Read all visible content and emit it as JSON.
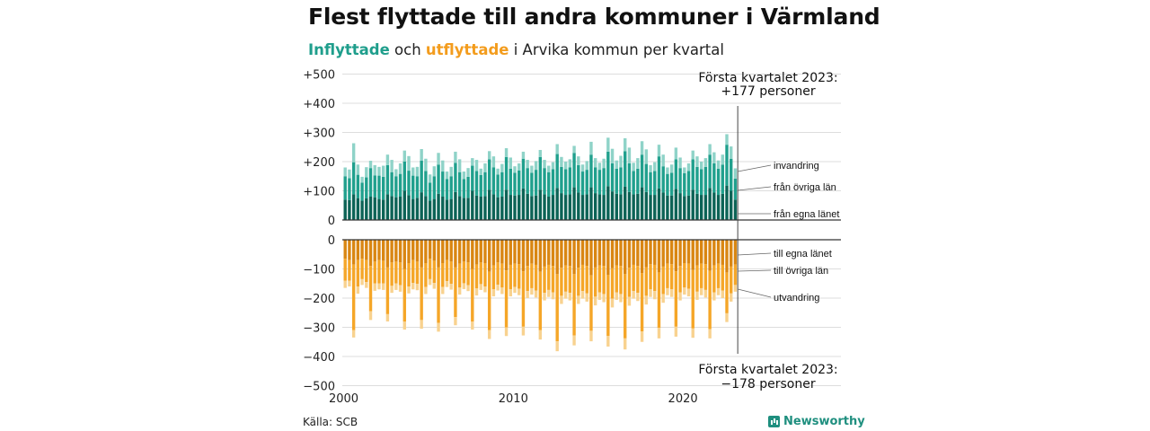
{
  "header": {
    "title": "Flest flyttade till andra kommuner i Värmland",
    "subtitle_in": "Inflyttade",
    "subtitle_mid": " och ",
    "subtitle_out": "utflyttade",
    "subtitle_rest": " i Arvika kommun per kvartal"
  },
  "footer": {
    "source": "Källa: SCB",
    "brand": "Newsworthy"
  },
  "colors": {
    "in_local": "#0c6356",
    "in_other": "#20a08d",
    "in_immig": "#8fd3c8",
    "out_local": "#d98612",
    "out_other": "#f5a628",
    "out_emig": "#f8d28f",
    "grid": "#dddddd",
    "axis": "#333333"
  },
  "chart_data": {
    "type": "bar",
    "stacked": true,
    "title": "",
    "x_tick_labels": [
      "2000",
      "2010",
      "2020"
    ],
    "y_tick_labels": [
      "+500",
      "+400",
      "+300",
      "+200",
      "+100",
      "0",
      "0",
      "−100",
      "−200",
      "−300",
      "−400",
      "−500"
    ],
    "ylim_in": [
      0,
      500
    ],
    "ylim_out": [
      -500,
      0
    ],
    "annotation_in": {
      "line1": "Första kvartalet 2023:",
      "line2": "+177 personer"
    },
    "annotation_out": {
      "line1": "Första kvartalet 2023:",
      "line2": "−178 personer"
    },
    "legend_in": [
      "invandring",
      "från övriga län",
      "från egna länet"
    ],
    "legend_out": [
      "till egna länet",
      "till övriga län",
      "utvandring"
    ],
    "categories": [
      "2000 K1",
      "2000 K2",
      "2000 K3",
      "2000 K4",
      "2001 K1",
      "2001 K2",
      "2001 K3",
      "2001 K4",
      "2002 K1",
      "2002 K2",
      "2002 K3",
      "2002 K4",
      "2003 K1",
      "2003 K2",
      "2003 K3",
      "2003 K4",
      "2004 K1",
      "2004 K2",
      "2004 K3",
      "2004 K4",
      "2005 K1",
      "2005 K2",
      "2005 K3",
      "2005 K4",
      "2006 K1",
      "2006 K2",
      "2006 K3",
      "2006 K4",
      "2007 K1",
      "2007 K2",
      "2007 K3",
      "2007 K4",
      "2008 K1",
      "2008 K2",
      "2008 K3",
      "2008 K4",
      "2009 K1",
      "2009 K2",
      "2009 K3",
      "2009 K4",
      "2010 K1",
      "2010 K2",
      "2010 K3",
      "2010 K4",
      "2011 K1",
      "2011 K2",
      "2011 K3",
      "2011 K4",
      "2012 K1",
      "2012 K2",
      "2012 K3",
      "2012 K4",
      "2013 K1",
      "2013 K2",
      "2013 K3",
      "2013 K4",
      "2014 K1",
      "2014 K2",
      "2014 K3",
      "2014 K4",
      "2015 K1",
      "2015 K2",
      "2015 K3",
      "2015 K4",
      "2016 K1",
      "2016 K2",
      "2016 K3",
      "2016 K4",
      "2017 K1",
      "2017 K2",
      "2017 K3",
      "2017 K4",
      "2018 K1",
      "2018 K2",
      "2018 K3",
      "2018 K4",
      "2019 K1",
      "2019 K2",
      "2019 K3",
      "2019 K4",
      "2020 K1",
      "2020 K2",
      "2020 K3",
      "2020 K4",
      "2021 K1",
      "2021 K2",
      "2021 K3",
      "2021 K4",
      "2022 K1",
      "2022 K2",
      "2022 K3",
      "2022 K4",
      "2023 K1"
    ],
    "in_series": [
      {
        "name": "från egna länet",
        "values": [
          70,
          68,
          88,
          75,
          66,
          74,
          80,
          78,
          72,
          70,
          88,
          82,
          78,
          80,
          100,
          85,
          72,
          76,
          95,
          82,
          66,
          72,
          90,
          80,
          70,
          72,
          96,
          82,
          76,
          76,
          100,
          84,
          80,
          82,
          104,
          88,
          78,
          80,
          104,
          86,
          84,
          86,
          108,
          90,
          82,
          84,
          104,
          88,
          80,
          86,
          110,
          92,
          86,
          88,
          112,
          94,
          86,
          88,
          112,
          92,
          88,
          86,
          116,
          98,
          90,
          88,
          114,
          96,
          88,
          90,
          112,
          96,
          86,
          86,
          108,
          94,
          84,
          84,
          106,
          92,
          82,
          84,
          104,
          90,
          86,
          86,
          110,
          94,
          86,
          90,
          118,
          100,
          70
        ]
      },
      {
        "name": "från övriga län",
        "values": [
          80,
          75,
          110,
          80,
          62,
          72,
          98,
          75,
          80,
          78,
          100,
          82,
          72,
          78,
          100,
          84,
          80,
          74,
          108,
          86,
          62,
          78,
          100,
          86,
          70,
          78,
          100,
          82,
          64,
          72,
          86,
          84,
          74,
          82,
          104,
          92,
          78,
          84,
          112,
          90,
          78,
          84,
          102,
          88,
          80,
          88,
          112,
          90,
          84,
          88,
          116,
          90,
          88,
          92,
          118,
          94,
          80,
          84,
          112,
          88,
          84,
          92,
          118,
          96,
          86,
          92,
          122,
          98,
          80,
          86,
          112,
          96,
          78,
          82,
          110,
          90,
          74,
          78,
          102,
          86,
          78,
          84,
          104,
          92,
          88,
          96,
          114,
          100,
          90,
          100,
          140,
          110,
          72
        ]
      },
      {
        "name": "invandring",
        "values": [
          30,
          30,
          65,
          35,
          20,
          35,
          25,
          35,
          30,
          38,
          36,
          42,
          24,
          36,
          38,
          50,
          28,
          32,
          40,
          42,
          28,
          34,
          40,
          38,
          26,
          32,
          38,
          44,
          26,
          30,
          26,
          38,
          22,
          30,
          28,
          38,
          20,
          28,
          30,
          38,
          22,
          24,
          24,
          28,
          24,
          30,
          24,
          28,
          22,
          24,
          34,
          34,
          26,
          28,
          24,
          30,
          24,
          30,
          44,
          32,
          24,
          32,
          48,
          50,
          28,
          40,
          44,
          54,
          28,
          36,
          46,
          50,
          24,
          30,
          40,
          40,
          22,
          28,
          40,
          36,
          20,
          26,
          30,
          36,
          26,
          30,
          36,
          38,
          28,
          34,
          36,
          42,
          35
        ]
      }
    ],
    "out_series": [
      {
        "name": "till egna länet",
        "values": [
          -65,
          -70,
          -85,
          -70,
          -65,
          -70,
          -90,
          -75,
          -70,
          -72,
          -95,
          -78,
          -75,
          -78,
          -100,
          -80,
          -70,
          -75,
          -95,
          -80,
          -65,
          -72,
          -95,
          -80,
          -70,
          -75,
          -95,
          -82,
          -75,
          -78,
          -100,
          -85,
          -78,
          -80,
          -110,
          -88,
          -78,
          -82,
          -105,
          -86,
          -82,
          -84,
          -108,
          -90,
          -82,
          -86,
          -110,
          -92,
          -86,
          -90,
          -118,
          -96,
          -88,
          -90,
          -118,
          -96,
          -86,
          -90,
          -122,
          -95,
          -88,
          -90,
          -120,
          -98,
          -88,
          -90,
          -118,
          -96,
          -86,
          -90,
          -114,
          -94,
          -84,
          -86,
          -112,
          -92,
          -82,
          -84,
          -108,
          -90,
          -80,
          -82,
          -104,
          -88,
          -82,
          -84,
          -106,
          -88,
          -82,
          -86,
          -112,
          -92,
          -85
        ]
      },
      {
        "name": "till övriga län",
        "values": [
          -75,
          -70,
          -225,
          -90,
          -70,
          -75,
          -155,
          -75,
          -80,
          -78,
          -160,
          -80,
          -75,
          -78,
          -180,
          -80,
          -78,
          -76,
          -180,
          -82,
          -70,
          -76,
          -190,
          -82,
          -72,
          -76,
          -170,
          -82,
          -74,
          -78,
          -180,
          -82,
          -74,
          -80,
          -200,
          -82,
          -76,
          -82,
          -195,
          -84,
          -80,
          -84,
          -190,
          -86,
          -84,
          -88,
          -200,
          -90,
          -86,
          -90,
          -230,
          -96,
          -90,
          -92,
          -210,
          -96,
          -90,
          -94,
          -190,
          -100,
          -92,
          -96,
          -210,
          -104,
          -92,
          -96,
          -220,
          -100,
          -90,
          -92,
          -200,
          -98,
          -86,
          -90,
          -190,
          -94,
          -84,
          -86,
          -190,
          -90,
          -84,
          -86,
          -200,
          -90,
          -84,
          -88,
          -200,
          -92,
          -84,
          -88,
          -140,
          -92,
          -70
        ]
      },
      {
        "name": "utvandring",
        "values": [
          -25,
          -20,
          -25,
          -25,
          -20,
          -20,
          -30,
          -25,
          -20,
          -22,
          -25,
          -24,
          -22,
          -22,
          -28,
          -24,
          -22,
          -22,
          -30,
          -24,
          -20,
          -20,
          -30,
          -24,
          -20,
          -20,
          -28,
          -24,
          -20,
          -20,
          -28,
          -24,
          -20,
          -20,
          -30,
          -24,
          -20,
          -22,
          -30,
          -24,
          -20,
          -22,
          -30,
          -24,
          -22,
          -24,
          -32,
          -26,
          -24,
          -24,
          -34,
          -28,
          -24,
          -26,
          -34,
          -28,
          -26,
          -28,
          -36,
          -30,
          -26,
          -28,
          -36,
          -30,
          -26,
          -28,
          -38,
          -30,
          -26,
          -28,
          -36,
          -30,
          -26,
          -28,
          -36,
          -30,
          -24,
          -26,
          -34,
          -28,
          -24,
          -26,
          -32,
          -28,
          -24,
          -26,
          -32,
          -28,
          -24,
          -26,
          -30,
          -28,
          -23
        ]
      }
    ]
  }
}
